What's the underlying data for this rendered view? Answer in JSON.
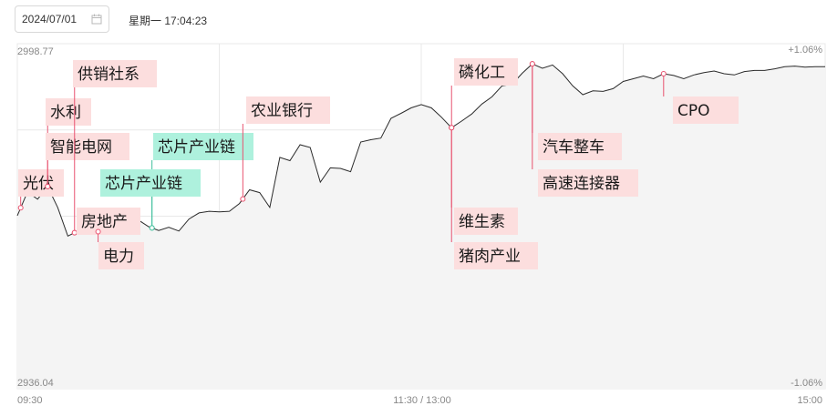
{
  "header": {
    "date_value": "2024/07/01",
    "calendar_icon": "calendar-icon",
    "weekday_time": "星期一 17:04:23"
  },
  "colors": {
    "line": "#2b2b2b",
    "up": "#e8526f",
    "down": "#3fbf9c",
    "tag_red_bg": "#fcdede",
    "tag_green_bg": "#aef1dd",
    "grid": "#e9e9e9"
  },
  "chart_data": {
    "type": "line",
    "y_top_label": "2998.77",
    "y_bottom_label": "2936.04",
    "pct_top_label": "+1.06%",
    "pct_bottom_label": "-1.06%",
    "x_tick_labels": [
      "09:30",
      "11:30 / 13:00",
      "15:00"
    ],
    "ylim": [
      2936.04,
      2998.77
    ],
    "x_minutes": [
      0,
      3,
      6,
      9,
      12,
      15,
      18,
      21,
      24,
      27,
      30,
      33,
      36,
      39,
      42,
      45,
      48,
      51,
      54,
      57,
      60,
      63,
      66,
      69,
      72,
      75,
      78,
      81,
      84,
      87,
      90,
      93,
      96,
      99,
      102,
      105,
      108,
      111,
      114,
      117,
      120,
      123,
      126,
      129,
      132,
      135,
      138,
      141,
      144,
      147,
      150,
      153,
      156,
      159,
      162,
      165,
      168,
      171,
      174,
      177,
      180,
      183,
      186,
      189,
      192,
      195,
      198,
      201,
      204,
      207,
      210,
      213,
      216,
      219,
      222,
      225,
      228,
      231,
      234,
      237,
      240
    ],
    "values": [
      2967.5,
      2971.8,
      2970.5,
      2972.8,
      2969.0,
      2963.8,
      2964.7,
      2966.5,
      2964.6,
      2965.6,
      2966.7,
      2966.4,
      2966.7,
      2965.5,
      2964.8,
      2965.4,
      2964.7,
      2966.9,
      2968.0,
      2968.3,
      2968.2,
      2968.3,
      2969.7,
      2972.2,
      2971.7,
      2969.0,
      2978.1,
      2977.5,
      2980.4,
      2979.9,
      2973.6,
      2976.2,
      2976.1,
      2975.5,
      2980.9,
      2981.3,
      2981.6,
      2985.2,
      2986.1,
      2987.1,
      2987.7,
      2987.1,
      2985.4,
      2983.5,
      2984.7,
      2986.0,
      2987.8,
      2989.1,
      2991.1,
      2991.4,
      2993.4,
      2995.1,
      2994.3,
      2994.9,
      2993.3,
      2991.1,
      2989.5,
      2990.2,
      2990.1,
      2990.6,
      2991.9,
      2992.4,
      2992.9,
      2992.4,
      2993.3,
      2993.0,
      2992.4,
      2993.1,
      2993.5,
      2993.8,
      2993.3,
      2993.1,
      2993.7,
      2993.9,
      2993.9,
      2994.2,
      2994.6,
      2994.7,
      2994.5,
      2994.6,
      2994.6
    ],
    "tags": [
      {
        "label": "光伏",
        "minute": 1,
        "color": "red"
      },
      {
        "label": "水利",
        "minute": 9,
        "color": "red"
      },
      {
        "label": "智能电网",
        "minute": 9,
        "color": "red"
      },
      {
        "label": "供销社系",
        "minute": 17,
        "color": "red"
      },
      {
        "label": "房地产",
        "minute": 17,
        "color": "red"
      },
      {
        "label": "电力",
        "minute": 24,
        "color": "red"
      },
      {
        "label": "芯片产业链",
        "minute": 40,
        "color": "green"
      },
      {
        "label": "芯片产业链",
        "minute": 40,
        "color": "green"
      },
      {
        "label": "农业银行",
        "minute": 67,
        "color": "red"
      },
      {
        "label": "磷化工",
        "minute": 129,
        "color": "red"
      },
      {
        "label": "维生素",
        "minute": 129,
        "color": "red"
      },
      {
        "label": "猪肉产业",
        "minute": 129,
        "color": "red"
      },
      {
        "label": "汽车整车",
        "minute": 153,
        "color": "red"
      },
      {
        "label": "高速连接器",
        "minute": 153,
        "color": "red"
      },
      {
        "label": "CPO",
        "minute": 192,
        "color": "red"
      }
    ]
  }
}
